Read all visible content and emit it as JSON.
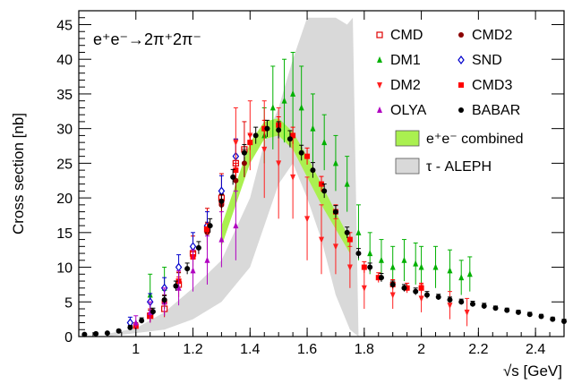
{
  "chart_data": {
    "type": "scatter",
    "title": "",
    "process_label": "e⁺e⁻→2π⁺2π⁻",
    "xlabel": "√s   [GeV]",
    "ylabel": "Cross section [nb]",
    "xlim": [
      0.8,
      2.5
    ],
    "ylim": [
      0,
      47
    ],
    "x_ticks": [
      1,
      1.2,
      1.4,
      1.6,
      1.8,
      2,
      2.2,
      2.4
    ],
    "x_tick_labels": [
      "1",
      "1.2",
      "1.4",
      "1.6",
      "1.8",
      "2",
      "2.2",
      "2.4"
    ],
    "y_ticks": [
      0,
      5,
      10,
      15,
      20,
      25,
      30,
      35,
      40,
      45
    ],
    "y_tick_labels": [
      "0",
      "5",
      "10",
      "15",
      "20",
      "25",
      "30",
      "35",
      "40",
      "45"
    ],
    "grid": false,
    "legend_position": "top-right",
    "bands": [
      {
        "name": "τ - ALEPH",
        "color": "#d9d9d9",
        "upper": [
          [
            0.9,
            0.4
          ],
          [
            1.0,
            1.2
          ],
          [
            1.1,
            3.5
          ],
          [
            1.2,
            7
          ],
          [
            1.3,
            11
          ],
          [
            1.4,
            20
          ],
          [
            1.45,
            28
          ],
          [
            1.5,
            33
          ],
          [
            1.55,
            40
          ],
          [
            1.6,
            46
          ],
          [
            1.7,
            46
          ],
          [
            1.74,
            45
          ],
          [
            1.76,
            46
          ],
          [
            1.78,
            0
          ]
        ],
        "lower": [
          [
            0.9,
            0
          ],
          [
            1.0,
            0.5
          ],
          [
            1.1,
            1
          ],
          [
            1.2,
            2.5
          ],
          [
            1.3,
            5
          ],
          [
            1.4,
            10
          ],
          [
            1.45,
            16
          ],
          [
            1.5,
            22
          ],
          [
            1.55,
            25
          ],
          [
            1.6,
            20
          ],
          [
            1.65,
            14
          ],
          [
            1.7,
            6
          ],
          [
            1.75,
            1
          ],
          [
            1.78,
            0
          ]
        ]
      },
      {
        "name": "e⁺e⁻ combined",
        "color": "#aaf050",
        "upper": [
          [
            1.3,
            16
          ],
          [
            1.35,
            22
          ],
          [
            1.4,
            28
          ],
          [
            1.45,
            31
          ],
          [
            1.5,
            31.5
          ],
          [
            1.55,
            29.5
          ],
          [
            1.6,
            26
          ],
          [
            1.65,
            22
          ],
          [
            1.7,
            18
          ],
          [
            1.75,
            14
          ]
        ],
        "lower": [
          [
            1.3,
            13
          ],
          [
            1.35,
            19
          ],
          [
            1.4,
            25
          ],
          [
            1.45,
            28.5
          ],
          [
            1.5,
            29
          ],
          [
            1.55,
            27
          ],
          [
            1.6,
            23
          ],
          [
            1.65,
            19
          ],
          [
            1.7,
            15.5
          ],
          [
            1.75,
            12
          ]
        ]
      }
    ],
    "series": [
      {
        "name": "CMD",
        "marker": "open-square",
        "color": "#e00000",
        "points": [
          [
            1.05,
            3,
            1
          ],
          [
            1.1,
            4,
            1.2
          ],
          [
            1.15,
            7.5,
            1.8
          ],
          [
            1.2,
            12,
            2.5
          ],
          [
            1.25,
            15.5,
            3
          ],
          [
            1.3,
            20,
            3.5
          ],
          [
            1.35,
            25,
            3.5
          ],
          [
            1.38,
            27,
            4
          ]
        ]
      },
      {
        "name": "CMD2",
        "marker": "circle",
        "color": "#8b0000",
        "points": [
          [
            1.0,
            1.5,
            0.5
          ],
          [
            1.05,
            3,
            0.8
          ],
          [
            1.1,
            5,
            1
          ],
          [
            1.15,
            8,
            1.2
          ],
          [
            1.2,
            11.5,
            1.3
          ],
          [
            1.25,
            15,
            1.5
          ],
          [
            1.3,
            19,
            1.6
          ],
          [
            1.35,
            22.5,
            1.8
          ],
          [
            1.38,
            25,
            2
          ]
        ]
      },
      {
        "name": "DM1",
        "marker": "triangle-up",
        "color": "#00b000",
        "points": [
          [
            1.05,
            6,
            3
          ],
          [
            1.1,
            7,
            3
          ],
          [
            1.45,
            29,
            4
          ],
          [
            1.48,
            33,
            6
          ],
          [
            1.52,
            34,
            6
          ],
          [
            1.55,
            35,
            6
          ],
          [
            1.58,
            33,
            6
          ],
          [
            1.62,
            30,
            5
          ],
          [
            1.66,
            28,
            4
          ],
          [
            1.7,
            25,
            4
          ],
          [
            1.74,
            22,
            4
          ],
          [
            1.78,
            15,
            4
          ],
          [
            1.82,
            12,
            3
          ],
          [
            1.86,
            11,
            3
          ],
          [
            1.9,
            10,
            3
          ],
          [
            1.94,
            11,
            3
          ],
          [
            1.98,
            10.5,
            3
          ],
          [
            2.0,
            10,
            3
          ],
          [
            2.05,
            10,
            3
          ],
          [
            2.1,
            9.5,
            3
          ],
          [
            2.14,
            8.5,
            2.5
          ],
          [
            2.17,
            9,
            2.5
          ]
        ]
      },
      {
        "name": "SND",
        "marker": "open-diamond",
        "color": "#0000cc",
        "points": [
          [
            0.98,
            2,
            0.8
          ],
          [
            1.05,
            5,
            1.2
          ],
          [
            1.1,
            7,
            1.5
          ],
          [
            1.15,
            10,
            1.8
          ],
          [
            1.2,
            13,
            2
          ],
          [
            1.25,
            16,
            2
          ],
          [
            1.3,
            21,
            2.2
          ],
          [
            1.35,
            26,
            2.5
          ]
        ]
      },
      {
        "name": "DM2",
        "marker": "triangle-down",
        "color": "#ff2020",
        "points": [
          [
            1.35,
            28,
            5
          ],
          [
            1.4,
            29,
            5
          ],
          [
            1.45,
            27,
            7
          ],
          [
            1.5,
            25,
            8
          ],
          [
            1.55,
            23,
            6
          ],
          [
            1.6,
            17,
            6
          ],
          [
            1.65,
            14,
            5
          ],
          [
            1.7,
            13,
            4
          ],
          [
            1.75,
            10,
            3
          ],
          [
            1.8,
            7,
            3
          ],
          [
            1.9,
            6,
            2
          ],
          [
            2.0,
            5.5,
            2
          ],
          [
            2.1,
            4.5,
            2
          ],
          [
            2.16,
            3.5,
            2
          ]
        ]
      },
      {
        "name": "CMD3",
        "marker": "square",
        "color": "#ff0000",
        "points": [
          [
            1.0,
            1.5,
            0.3
          ],
          [
            1.05,
            3,
            0.4
          ],
          [
            1.1,
            5,
            0.5
          ],
          [
            1.15,
            8,
            0.6
          ],
          [
            1.2,
            11.5,
            0.7
          ],
          [
            1.25,
            15.5,
            0.8
          ],
          [
            1.3,
            19.5,
            0.9
          ],
          [
            1.35,
            24,
            1
          ],
          [
            1.4,
            28,
            1.1
          ],
          [
            1.45,
            30,
            1.2
          ],
          [
            1.5,
            30.5,
            1.2
          ],
          [
            1.55,
            29,
            1.2
          ],
          [
            1.6,
            26,
            1.2
          ],
          [
            1.65,
            22,
            1.1
          ],
          [
            1.7,
            18,
            1
          ],
          [
            1.75,
            14,
            1
          ],
          [
            1.8,
            10,
            0.8
          ],
          [
            1.85,
            8.5,
            0.7
          ],
          [
            1.9,
            7.5,
            0.7
          ],
          [
            1.95,
            7,
            0.7
          ],
          [
            2.0,
            7,
            0.7
          ]
        ]
      },
      {
        "name": "OLYA",
        "marker": "triangle-up",
        "color": "#b000c0",
        "points": [
          [
            1.0,
            2,
            1
          ],
          [
            1.05,
            3.5,
            1.5
          ],
          [
            1.1,
            5,
            2
          ],
          [
            1.15,
            7,
            2.5
          ],
          [
            1.2,
            9.5,
            3
          ],
          [
            1.25,
            11,
            3.5
          ],
          [
            1.3,
            14,
            4
          ],
          [
            1.35,
            16,
            5
          ]
        ]
      },
      {
        "name": "BABAR",
        "marker": "circle",
        "color": "#000000",
        "points": [
          [
            0.82,
            0.3,
            0.1
          ],
          [
            0.86,
            0.4,
            0.1
          ],
          [
            0.9,
            0.5,
            0.1
          ],
          [
            0.94,
            0.8,
            0.2
          ],
          [
            0.98,
            1.3,
            0.3
          ],
          [
            1.02,
            2.3,
            0.4
          ],
          [
            1.06,
            3.6,
            0.5
          ],
          [
            1.1,
            5.3,
            0.6
          ],
          [
            1.14,
            7.3,
            0.7
          ],
          [
            1.18,
            9.8,
            0.8
          ],
          [
            1.22,
            12.8,
            0.9
          ],
          [
            1.26,
            16,
            1
          ],
          [
            1.3,
            19.5,
            1
          ],
          [
            1.34,
            23,
            1.1
          ],
          [
            1.38,
            26.5,
            1.2
          ],
          [
            1.42,
            29,
            1.2
          ],
          [
            1.46,
            30,
            1.2
          ],
          [
            1.5,
            29.8,
            1.2
          ],
          [
            1.54,
            28.5,
            1.2
          ],
          [
            1.58,
            26.5,
            1.1
          ],
          [
            1.62,
            24,
            1.1
          ],
          [
            1.66,
            21,
            1
          ],
          [
            1.7,
            18,
            0.9
          ],
          [
            1.74,
            15,
            0.8
          ],
          [
            1.78,
            12,
            0.7
          ],
          [
            1.82,
            10,
            0.6
          ],
          [
            1.86,
            8.5,
            0.6
          ],
          [
            1.9,
            7.5,
            0.5
          ],
          [
            1.94,
            7,
            0.5
          ],
          [
            1.98,
            6.5,
            0.5
          ],
          [
            2.02,
            6,
            0.5
          ],
          [
            2.06,
            5.7,
            0.4
          ],
          [
            2.1,
            5.3,
            0.4
          ],
          [
            2.14,
            5,
            0.4
          ],
          [
            2.18,
            4.7,
            0.4
          ],
          [
            2.22,
            4.4,
            0.4
          ],
          [
            2.26,
            4.1,
            0.3
          ],
          [
            2.3,
            3.8,
            0.3
          ],
          [
            2.34,
            3.5,
            0.3
          ],
          [
            2.38,
            3.2,
            0.3
          ],
          [
            2.42,
            2.9,
            0.3
          ],
          [
            2.46,
            2.5,
            0.3
          ],
          [
            2.5,
            2.2,
            0.3
          ]
        ]
      }
    ],
    "legend": [
      {
        "label": "CMD",
        "series": "CMD"
      },
      {
        "label": "CMD2",
        "series": "CMD2"
      },
      {
        "label": "DM1",
        "series": "DM1"
      },
      {
        "label": "SND",
        "series": "SND"
      },
      {
        "label": "DM2",
        "series": "DM2"
      },
      {
        "label": "CMD3",
        "series": "CMD3"
      },
      {
        "label": "OLYA",
        "series": "OLYA"
      },
      {
        "label": "BABAR",
        "series": "BABAR"
      },
      {
        "label": "e⁺e⁻ combined",
        "band": "e⁺e⁻ combined"
      },
      {
        "label": "τ - ALEPH",
        "band": "τ - ALEPH"
      }
    ]
  }
}
